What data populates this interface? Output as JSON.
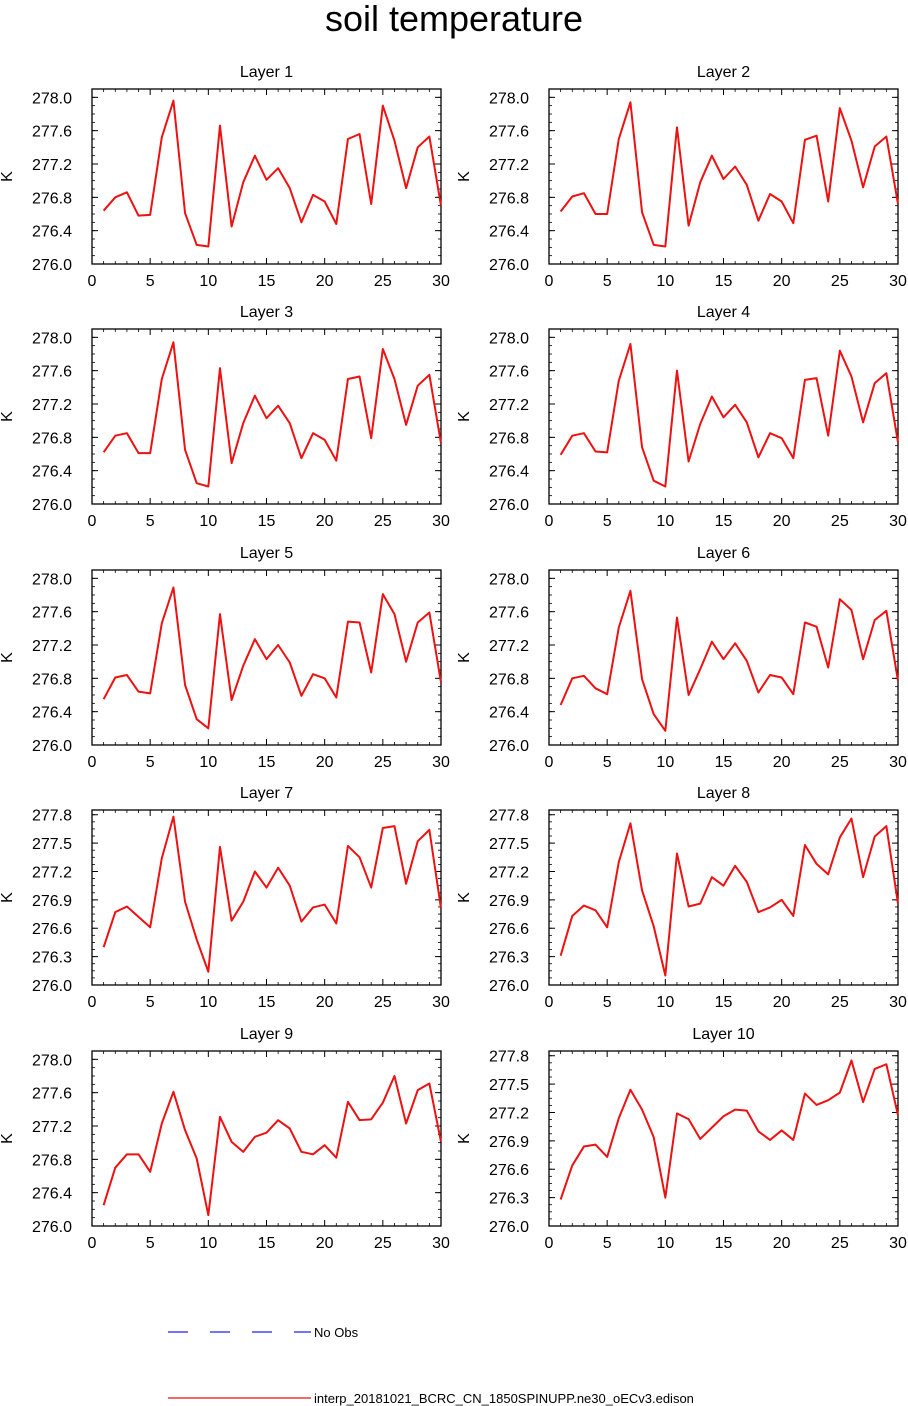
{
  "title": "soil temperature",
  "chart_data": [
    {
      "type": "line",
      "title": "Layer 1",
      "ylabel": "K",
      "xlim": [
        0,
        30
      ],
      "ylim": [
        276.0,
        278.1
      ],
      "xticks": [
        0,
        5,
        10,
        15,
        20,
        25,
        30
      ],
      "yticks": [
        276.0,
        276.4,
        276.8,
        277.2,
        277.6,
        278.0
      ],
      "ytick_labels": [
        "276.0",
        "276.4",
        "276.8",
        "277.2",
        "277.6",
        "278.0"
      ],
      "series": [
        {
          "color": "#ee1111",
          "x": [
            1,
            2,
            3,
            4,
            5,
            6,
            7,
            8,
            9,
            10,
            11,
            12,
            13,
            14,
            15,
            16,
            17,
            18,
            19,
            20,
            21,
            22,
            23,
            24,
            25,
            26,
            27,
            28,
            29,
            30
          ],
          "values": [
            276.64,
            276.8,
            276.86,
            276.58,
            276.59,
            277.52,
            277.96,
            276.61,
            276.23,
            276.21,
            277.66,
            276.45,
            276.98,
            277.3,
            277.01,
            277.15,
            276.91,
            276.5,
            276.83,
            276.75,
            276.48,
            277.5,
            277.56,
            276.72,
            277.9,
            277.48,
            276.91,
            277.4,
            277.53,
            276.7
          ]
        }
      ]
    },
    {
      "type": "line",
      "title": "Layer 2",
      "ylabel": "K",
      "xlim": [
        0,
        30
      ],
      "ylim": [
        276.0,
        278.1
      ],
      "xticks": [
        0,
        5,
        10,
        15,
        20,
        25,
        30
      ],
      "yticks": [
        276.0,
        276.4,
        276.8,
        277.2,
        277.6,
        278.0
      ],
      "ytick_labels": [
        "276.0",
        "276.4",
        "276.8",
        "277.2",
        "277.6",
        "278.0"
      ],
      "series": [
        {
          "color": "#ee1111",
          "x": [
            1,
            2,
            3,
            4,
            5,
            6,
            7,
            8,
            9,
            10,
            11,
            12,
            13,
            14,
            15,
            16,
            17,
            18,
            19,
            20,
            21,
            22,
            23,
            24,
            25,
            26,
            27,
            28,
            29,
            30
          ],
          "values": [
            276.63,
            276.81,
            276.85,
            276.6,
            276.6,
            277.5,
            277.94,
            276.62,
            276.23,
            276.21,
            277.64,
            276.46,
            276.98,
            277.3,
            277.02,
            277.17,
            276.95,
            276.52,
            276.84,
            276.75,
            276.49,
            277.49,
            277.54,
            276.75,
            277.87,
            277.48,
            276.92,
            277.41,
            277.53,
            276.72
          ]
        }
      ]
    },
    {
      "type": "line",
      "title": "Layer 3",
      "ylabel": "K",
      "xlim": [
        0,
        30
      ],
      "ylim": [
        276.0,
        278.1
      ],
      "xticks": [
        0,
        5,
        10,
        15,
        20,
        25,
        30
      ],
      "yticks": [
        276.0,
        276.4,
        276.8,
        277.2,
        277.6,
        278.0
      ],
      "ytick_labels": [
        "276.0",
        "276.4",
        "276.8",
        "277.2",
        "277.6",
        "278.0"
      ],
      "series": [
        {
          "color": "#ee1111",
          "x": [
            1,
            2,
            3,
            4,
            5,
            6,
            7,
            8,
            9,
            10,
            11,
            12,
            13,
            14,
            15,
            16,
            17,
            18,
            19,
            20,
            21,
            22,
            23,
            24,
            25,
            26,
            27,
            28,
            29,
            30
          ],
          "values": [
            276.62,
            276.82,
            276.85,
            276.61,
            276.61,
            277.5,
            277.94,
            276.65,
            276.25,
            276.21,
            277.63,
            276.49,
            276.97,
            277.3,
            277.03,
            277.18,
            276.97,
            276.55,
            276.85,
            276.77,
            276.52,
            277.5,
            277.53,
            276.79,
            277.86,
            277.5,
            276.95,
            277.42,
            277.55,
            276.73
          ]
        }
      ]
    },
    {
      "type": "line",
      "title": "Layer 4",
      "ylabel": "K",
      "xlim": [
        0,
        30
      ],
      "ylim": [
        276.0,
        278.1
      ],
      "xticks": [
        0,
        5,
        10,
        15,
        20,
        25,
        30
      ],
      "yticks": [
        276.0,
        276.4,
        276.8,
        277.2,
        277.6,
        278.0
      ],
      "ytick_labels": [
        "276.0",
        "276.4",
        "276.8",
        "277.2",
        "277.6",
        "278.0"
      ],
      "series": [
        {
          "color": "#ee1111",
          "x": [
            1,
            2,
            3,
            4,
            5,
            6,
            7,
            8,
            9,
            10,
            11,
            12,
            13,
            14,
            15,
            16,
            17,
            18,
            19,
            20,
            21,
            22,
            23,
            24,
            25,
            26,
            27,
            28,
            29,
            30
          ],
          "values": [
            276.59,
            276.82,
            276.85,
            276.63,
            276.62,
            277.48,
            277.92,
            276.68,
            276.28,
            276.21,
            277.6,
            276.51,
            276.96,
            277.29,
            277.04,
            277.19,
            276.98,
            276.56,
            276.85,
            276.79,
            276.55,
            277.49,
            277.51,
            276.82,
            277.84,
            277.53,
            276.98,
            277.45,
            277.57,
            276.74
          ]
        }
      ]
    },
    {
      "type": "line",
      "title": "Layer 5",
      "ylabel": "K",
      "xlim": [
        0,
        30
      ],
      "ylim": [
        276.0,
        278.1
      ],
      "xticks": [
        0,
        5,
        10,
        15,
        20,
        25,
        30
      ],
      "yticks": [
        276.0,
        276.4,
        276.8,
        277.2,
        277.6,
        278.0
      ],
      "ytick_labels": [
        "276.0",
        "276.4",
        "276.8",
        "277.2",
        "277.6",
        "278.0"
      ],
      "series": [
        {
          "color": "#ee1111",
          "x": [
            1,
            2,
            3,
            4,
            5,
            6,
            7,
            8,
            9,
            10,
            11,
            12,
            13,
            14,
            15,
            16,
            17,
            18,
            19,
            20,
            21,
            22,
            23,
            24,
            25,
            26,
            27,
            28,
            29,
            30
          ],
          "values": [
            276.55,
            276.81,
            276.84,
            276.64,
            276.62,
            277.46,
            277.89,
            276.72,
            276.31,
            276.2,
            277.57,
            276.54,
            276.95,
            277.27,
            277.03,
            277.2,
            276.99,
            276.59,
            276.85,
            276.8,
            276.57,
            277.48,
            277.47,
            276.87,
            277.81,
            277.57,
            277.0,
            277.47,
            277.59,
            276.75
          ]
        }
      ]
    },
    {
      "type": "line",
      "title": "Layer 6",
      "ylabel": "K",
      "xlim": [
        0,
        30
      ],
      "ylim": [
        276.0,
        278.1
      ],
      "xticks": [
        0,
        5,
        10,
        15,
        20,
        25,
        30
      ],
      "yticks": [
        276.0,
        276.4,
        276.8,
        277.2,
        277.6,
        278.0
      ],
      "ytick_labels": [
        "276.0",
        "276.4",
        "276.8",
        "277.2",
        "277.6",
        "278.0"
      ],
      "series": [
        {
          "color": "#ee1111",
          "x": [
            1,
            2,
            3,
            4,
            5,
            6,
            7,
            8,
            9,
            10,
            11,
            12,
            13,
            14,
            15,
            16,
            17,
            18,
            19,
            20,
            21,
            22,
            23,
            24,
            25,
            26,
            27,
            28,
            29,
            30
          ],
          "values": [
            276.48,
            276.8,
            276.83,
            276.68,
            276.61,
            277.41,
            277.85,
            276.79,
            276.37,
            276.17,
            277.53,
            276.6,
            276.91,
            277.24,
            277.03,
            277.22,
            277.01,
            276.63,
            276.84,
            276.81,
            276.61,
            277.47,
            277.42,
            276.93,
            277.75,
            277.62,
            277.03,
            277.5,
            277.61,
            276.77
          ]
        }
      ]
    },
    {
      "type": "line",
      "title": "Layer 7",
      "ylabel": "K",
      "xlim": [
        0,
        30
      ],
      "ylim": [
        276.0,
        277.85
      ],
      "xticks": [
        0,
        5,
        10,
        15,
        20,
        25,
        30
      ],
      "yticks": [
        276.0,
        276.3,
        276.6,
        276.9,
        277.2,
        277.5,
        277.8
      ],
      "ytick_labels": [
        "276.0",
        "276.3",
        "276.6",
        "276.9",
        "277.2",
        "277.5",
        "277.8"
      ],
      "series": [
        {
          "color": "#ee1111",
          "x": [
            1,
            2,
            3,
            4,
            5,
            6,
            7,
            8,
            9,
            10,
            11,
            12,
            13,
            14,
            15,
            16,
            17,
            18,
            19,
            20,
            21,
            22,
            23,
            24,
            25,
            26,
            27,
            28,
            29,
            30
          ],
          "values": [
            276.4,
            276.77,
            276.83,
            276.72,
            276.61,
            277.34,
            277.78,
            276.88,
            276.48,
            276.14,
            277.46,
            276.68,
            276.88,
            277.2,
            277.03,
            277.24,
            277.05,
            276.67,
            276.82,
            276.85,
            276.65,
            277.47,
            277.35,
            277.03,
            277.66,
            277.68,
            277.07,
            277.52,
            277.64,
            276.81
          ]
        }
      ]
    },
    {
      "type": "line",
      "title": "Layer 8",
      "ylabel": "K",
      "xlim": [
        0,
        30
      ],
      "ylim": [
        276.0,
        277.85
      ],
      "xticks": [
        0,
        5,
        10,
        15,
        20,
        25,
        30
      ],
      "yticks": [
        276.0,
        276.3,
        276.6,
        276.9,
        277.2,
        277.5,
        277.8
      ],
      "ytick_labels": [
        "276.0",
        "276.3",
        "276.6",
        "276.9",
        "277.2",
        "277.5",
        "277.8"
      ],
      "series": [
        {
          "color": "#ee1111",
          "x": [
            1,
            2,
            3,
            4,
            5,
            6,
            7,
            8,
            9,
            10,
            11,
            12,
            13,
            14,
            15,
            16,
            17,
            18,
            19,
            20,
            21,
            22,
            23,
            24,
            25,
            26,
            27,
            28,
            29,
            30
          ],
          "values": [
            276.31,
            276.73,
            276.84,
            276.79,
            276.61,
            277.3,
            277.71,
            277.0,
            276.62,
            276.1,
            277.39,
            276.83,
            276.86,
            277.14,
            277.05,
            277.26,
            277.09,
            276.77,
            276.82,
            276.9,
            276.73,
            277.48,
            277.28,
            277.17,
            277.56,
            277.76,
            277.14,
            277.57,
            277.68,
            276.86
          ]
        }
      ]
    },
    {
      "type": "line",
      "title": "Layer 9",
      "ylabel": "K",
      "xlim": [
        0,
        30
      ],
      "ylim": [
        276.0,
        278.1
      ],
      "xticks": [
        0,
        5,
        10,
        15,
        20,
        25,
        30
      ],
      "yticks": [
        276.0,
        276.4,
        276.8,
        277.2,
        277.6,
        278.0
      ],
      "ytick_labels": [
        "276.0",
        "276.4",
        "276.8",
        "277.2",
        "277.6",
        "278.0"
      ],
      "series": [
        {
          "color": "#ee1111",
          "x": [
            1,
            2,
            3,
            4,
            5,
            6,
            7,
            8,
            9,
            10,
            11,
            12,
            13,
            14,
            15,
            16,
            17,
            18,
            19,
            20,
            21,
            22,
            23,
            24,
            25,
            26,
            27,
            28,
            29,
            30
          ],
          "values": [
            276.25,
            276.7,
            276.86,
            276.86,
            276.65,
            277.23,
            277.61,
            277.15,
            276.81,
            276.13,
            277.31,
            277.01,
            276.89,
            277.07,
            277.12,
            277.27,
            277.17,
            276.89,
            276.86,
            276.97,
            276.82,
            277.49,
            277.27,
            277.28,
            277.48,
            277.8,
            277.23,
            277.63,
            277.71,
            277.01
          ]
        }
      ]
    },
    {
      "type": "line",
      "title": "Layer 10",
      "ylabel": "K",
      "xlim": [
        0,
        30
      ],
      "ylim": [
        276.0,
        277.85
      ],
      "xticks": [
        0,
        5,
        10,
        15,
        20,
        25,
        30
      ],
      "yticks": [
        276.0,
        276.3,
        276.6,
        276.9,
        277.2,
        277.5,
        277.8
      ],
      "ytick_labels": [
        "276.0",
        "276.3",
        "276.6",
        "276.9",
        "277.2",
        "277.5",
        "277.8"
      ],
      "series": [
        {
          "color": "#ee1111",
          "x": [
            1,
            2,
            3,
            4,
            5,
            6,
            7,
            8,
            9,
            10,
            11,
            12,
            13,
            14,
            15,
            16,
            17,
            18,
            19,
            20,
            21,
            22,
            23,
            24,
            25,
            26,
            27,
            28,
            29,
            30
          ],
          "values": [
            276.28,
            276.64,
            276.84,
            276.86,
            276.73,
            277.14,
            277.44,
            277.23,
            276.94,
            276.3,
            277.19,
            277.13,
            276.92,
            277.04,
            277.16,
            277.23,
            277.22,
            277.0,
            276.91,
            277.01,
            276.91,
            277.4,
            277.28,
            277.33,
            277.41,
            277.75,
            277.31,
            277.66,
            277.71,
            277.17
          ]
        }
      ]
    }
  ],
  "legend": {
    "items": [
      {
        "label": "No Obs",
        "color": "#2222ee",
        "dash": "dashed"
      },
      {
        "label": "interp_20181021_BCRC_CN_1850SPINUPP.ne30_oECv3.edison",
        "color": "#ee1111",
        "dash": "solid"
      }
    ]
  }
}
